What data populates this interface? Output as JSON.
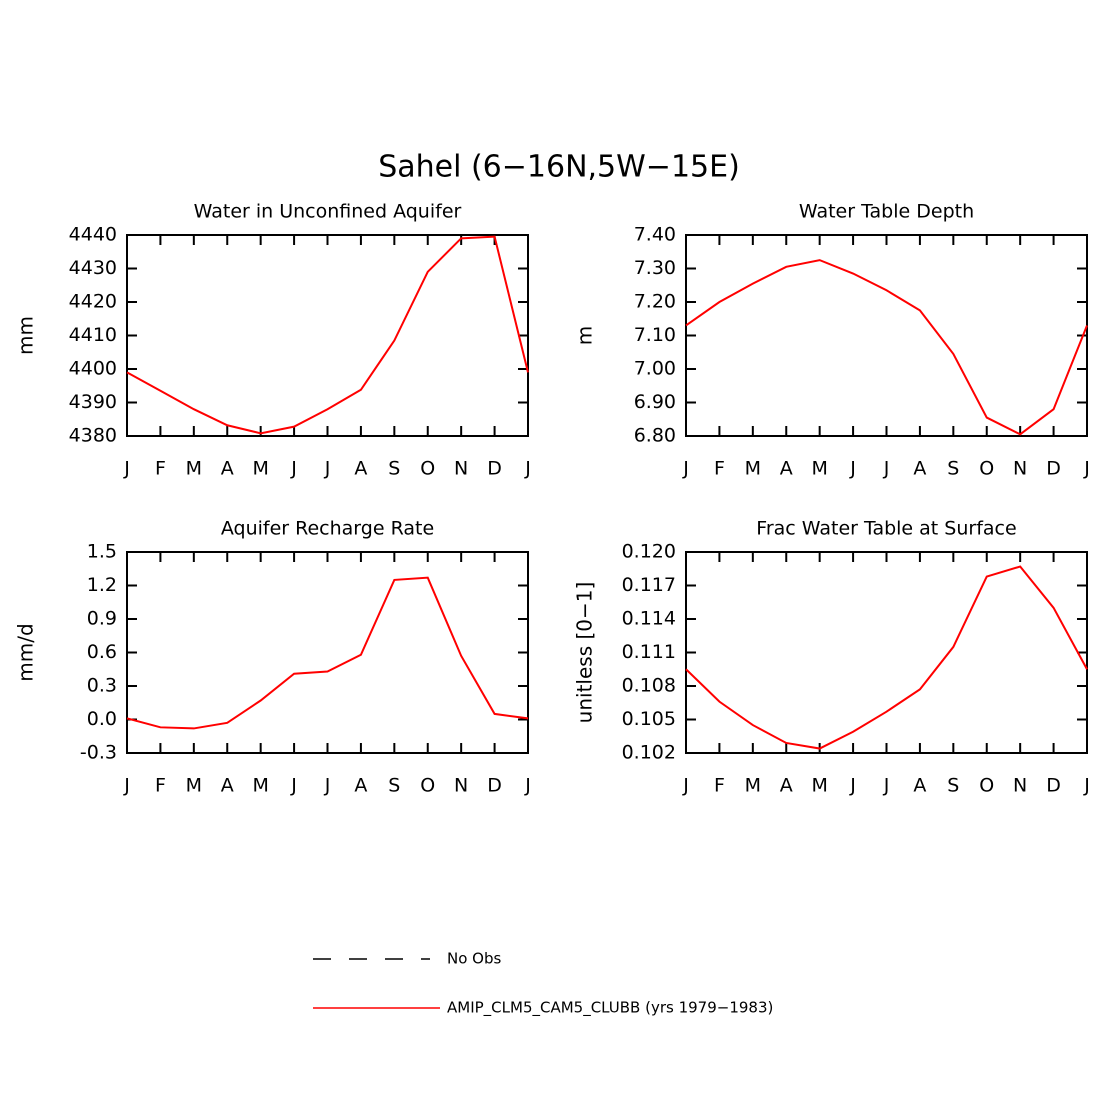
{
  "title": "Sahel (6−16N,5W−15E)",
  "chart_data": [
    {
      "type": "line",
      "title": "Water in Unconfined Aquifer",
      "ylabel": "mm",
      "categories": [
        "J",
        "F",
        "M",
        "A",
        "M",
        "J",
        "J",
        "A",
        "S",
        "O",
        "N",
        "D",
        "J"
      ],
      "values": [
        4399,
        4393.5,
        4388,
        4383.2,
        4380.8,
        4382.8,
        4388,
        4393.8,
        4408.5,
        4429,
        4439,
        4439.5,
        4399
      ],
      "color": "#ff0000",
      "ylim": [
        4380,
        4440
      ],
      "yticks": [
        4380,
        4390,
        4400,
        4410,
        4420,
        4430,
        4440
      ]
    },
    {
      "type": "line",
      "title": "Water Table Depth",
      "ylabel": "m",
      "categories": [
        "J",
        "F",
        "M",
        "A",
        "M",
        "J",
        "J",
        "A",
        "S",
        "O",
        "N",
        "D",
        "J"
      ],
      "values": [
        7.13,
        7.2,
        7.255,
        7.305,
        7.325,
        7.285,
        7.235,
        7.175,
        7.045,
        6.855,
        6.805,
        6.88,
        7.13
      ],
      "color": "#ff0000",
      "ylim": [
        6.8,
        7.4
      ],
      "yticks": [
        {
          "value": 6.8,
          "label": "6.80"
        },
        {
          "value": 6.9,
          "label": "6.90"
        },
        {
          "value": 7.0,
          "label": "7.00"
        },
        {
          "value": 7.1,
          "label": "7.10"
        },
        {
          "value": 7.2,
          "label": "7.20"
        },
        {
          "value": 7.3,
          "label": "7.30"
        },
        {
          "value": 7.4,
          "label": "7.40"
        }
      ]
    },
    {
      "type": "line",
      "title": "Aquifer Recharge Rate",
      "ylabel": "mm/d",
      "categories": [
        "J",
        "F",
        "M",
        "A",
        "M",
        "J",
        "J",
        "A",
        "S",
        "O",
        "N",
        "D",
        "J"
      ],
      "values": [
        0.01,
        -0.07,
        -0.08,
        -0.03,
        0.17,
        0.41,
        0.43,
        0.58,
        1.25,
        1.27,
        0.57,
        0.05,
        0.01
      ],
      "color": "#ff0000",
      "ylim": [
        -0.3,
        1.5
      ],
      "yticks": [
        -0.3,
        {
          "value": 0,
          "label": "0.0"
        },
        0.3,
        0.6,
        0.9,
        1.2,
        1.5
      ]
    },
    {
      "type": "line",
      "title": "Frac Water Table at Surface",
      "ylabel": "unitless [0−1]",
      "categories": [
        "J",
        "F",
        "M",
        "A",
        "M",
        "J",
        "J",
        "A",
        "S",
        "O",
        "N",
        "D",
        "J"
      ],
      "values": [
        0.1095,
        0.1066,
        0.1045,
        0.1029,
        0.1024,
        0.1039,
        0.1057,
        0.1077,
        0.1115,
        0.1178,
        0.1187,
        0.115,
        0.1095
      ],
      "color": "#ff0000",
      "ylim": [
        0.102,
        0.12
      ],
      "yticks": [
        0.102,
        0.105,
        0.108,
        0.111,
        0.114,
        0.117,
        {
          "value": 0.12,
          "label": "0.120"
        }
      ]
    }
  ],
  "legend": [
    {
      "name": "No Obs",
      "color": "#000000",
      "dashed": true
    },
    {
      "name": "AMIP_CLM5_CAM5_CLUBB (yrs 1979−1983)",
      "color": "#ff0000",
      "dashed": false
    }
  ]
}
